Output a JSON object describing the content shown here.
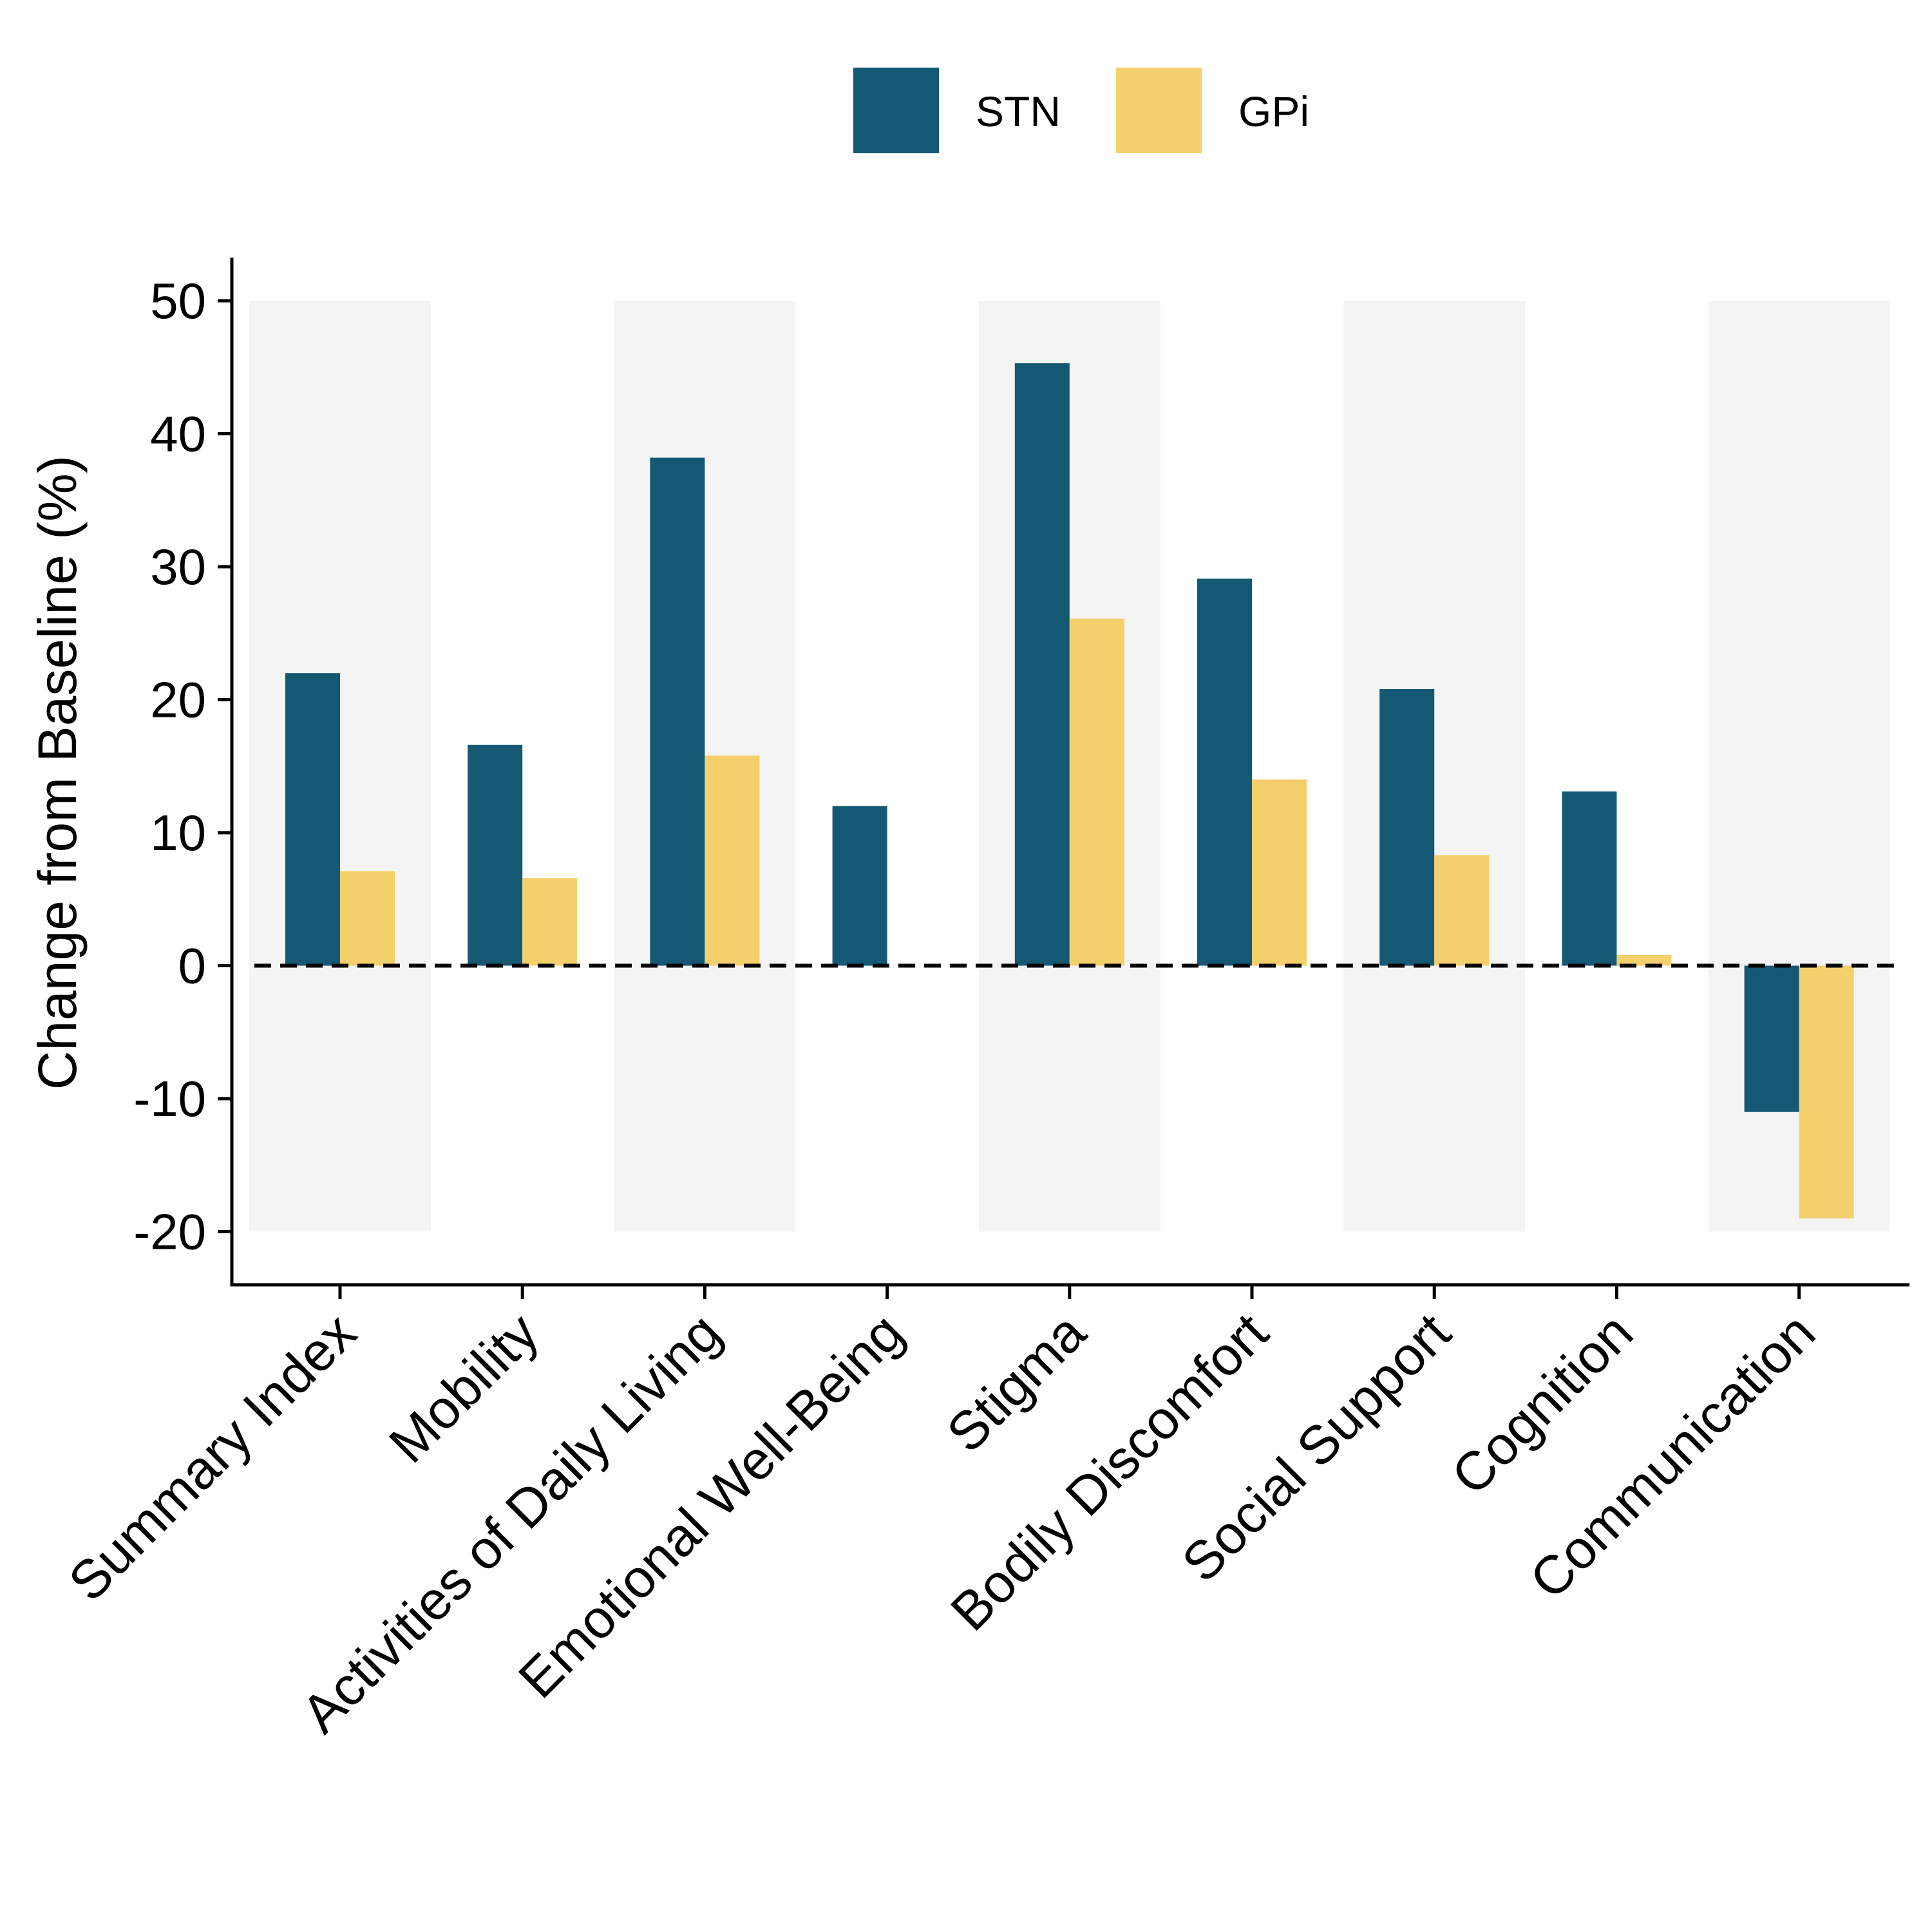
{
  "chart_data": {
    "type": "bar",
    "ylabel": "Change from Baseline (%)",
    "xlabel": "",
    "ylim": [
      -20,
      50
    ],
    "yticks": [
      -20,
      -10,
      0,
      10,
      20,
      30,
      40,
      50
    ],
    "categories": [
      "Summary Index",
      "Mobility",
      "Activities of Daily Living",
      "Emotional Well-Being",
      "Stigma",
      "Bodily Discomfort",
      "Social Support",
      "Cognition",
      "Communication"
    ],
    "series": [
      {
        "name": "STN",
        "color": "#155873",
        "values": [
          22.0,
          16.6,
          38.2,
          12.0,
          45.3,
          29.1,
          20.8,
          13.1,
          -11.0
        ]
      },
      {
        "name": "GPi",
        "color": "#F4D06D",
        "values": [
          7.1,
          6.6,
          15.8,
          0.0,
          26.1,
          14.0,
          8.3,
          0.8,
          -19.0
        ]
      }
    ],
    "legend_position": "top",
    "reference_line": {
      "y": 0,
      "style": "dashed"
    },
    "alternating_background": {
      "color": "#F4F4F4",
      "categories": [
        0,
        2,
        4,
        6,
        8
      ]
    },
    "grid": false
  }
}
